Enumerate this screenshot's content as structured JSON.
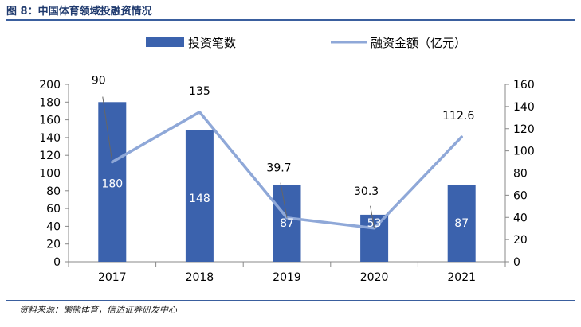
{
  "figure": {
    "title": "图 8：中国体育领域投融资情况",
    "source": "资料来源：懒熊体育，信达证券研发中心"
  },
  "colors": {
    "bar": "#3b62ad",
    "line": "#8fa8d8",
    "axis": "#888888",
    "text": "#000000",
    "rule": "#3a5f9e"
  },
  "chart_data": {
    "type": "bar",
    "categories": [
      "2017",
      "2018",
      "2019",
      "2020",
      "2021"
    ],
    "series": [
      {
        "name": "投资笔数",
        "type": "bar",
        "axis": "left",
        "values": [
          180,
          148,
          87,
          53,
          87
        ],
        "labels": [
          "180",
          "148",
          "87",
          "53",
          "87"
        ]
      },
      {
        "name": "融资金额（亿元）",
        "type": "line",
        "axis": "right",
        "values": [
          90,
          135,
          39.7,
          30.3,
          112.6
        ],
        "labels": [
          "90",
          "135",
          "39.7",
          "30.3",
          "112.6"
        ]
      }
    ],
    "y_left": {
      "min": 0,
      "max": 200,
      "step": 20,
      "ticks": [
        "0",
        "20",
        "40",
        "60",
        "80",
        "100",
        "120",
        "140",
        "160",
        "180",
        "200"
      ]
    },
    "y_right": {
      "min": 0,
      "max": 160,
      "step": 20,
      "ticks": [
        "0",
        "20",
        "40",
        "60",
        "80",
        "100",
        "120",
        "140",
        "160"
      ]
    },
    "legend_position": "top",
    "grid": false
  }
}
